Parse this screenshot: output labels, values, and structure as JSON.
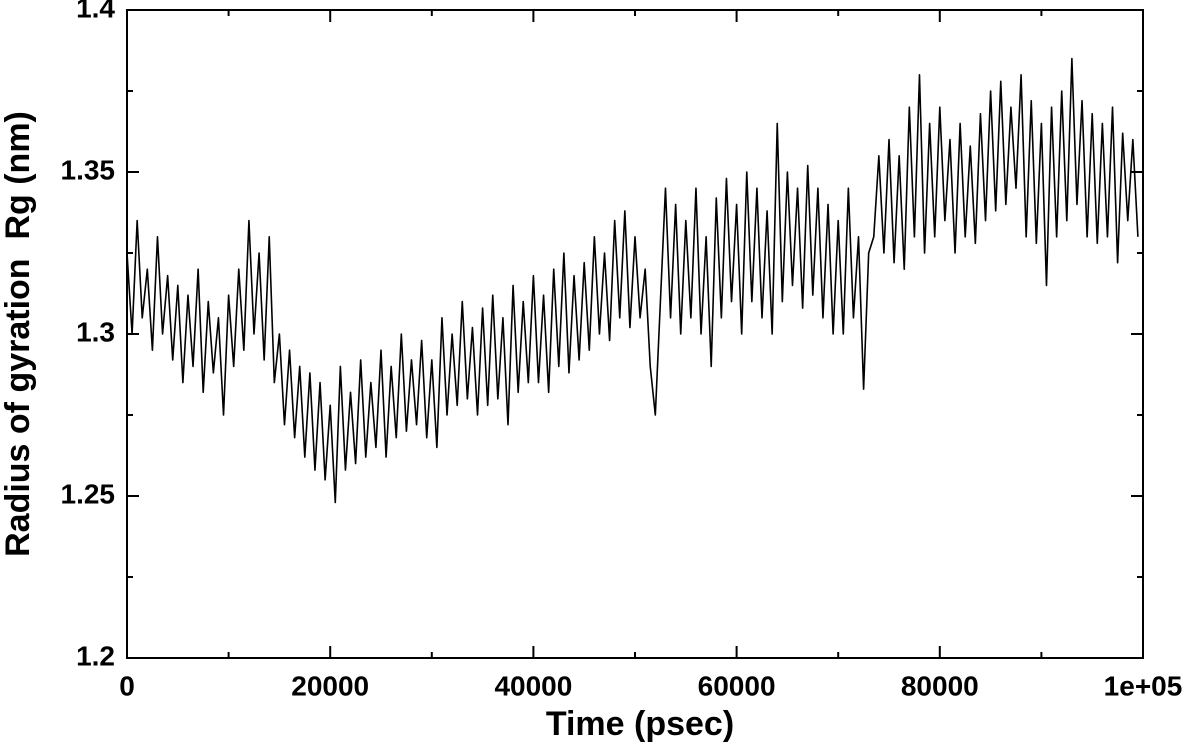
{
  "chart_data": {
    "type": "line",
    "xlabel": "Time (psec)",
    "ylabel": "Radius of gyration  Rg (nm)",
    "color": "#000000",
    "x": [
      0,
      500,
      1000,
      1500,
      2000,
      2500,
      3000,
      3500,
      4000,
      4500,
      5000,
      5500,
      6000,
      6500,
      7000,
      7500,
      8000,
      8500,
      9000,
      9500,
      10000,
      10500,
      11000,
      11500,
      12000,
      12500,
      13000,
      13500,
      14000,
      14500,
      15000,
      15500,
      16000,
      16500,
      17000,
      17500,
      18000,
      18500,
      19000,
      19500,
      20000,
      20500,
      21000,
      21500,
      22000,
      22500,
      23000,
      23500,
      24000,
      24500,
      25000,
      25500,
      26000,
      26500,
      27000,
      27500,
      28000,
      28500,
      29000,
      29500,
      30000,
      30500,
      31000,
      31500,
      32000,
      32500,
      33000,
      33500,
      34000,
      34500,
      35000,
      35500,
      36000,
      36500,
      37000,
      37500,
      38000,
      38500,
      39000,
      39500,
      40000,
      40500,
      41000,
      41500,
      42000,
      42500,
      43000,
      43500,
      44000,
      44500,
      45000,
      45500,
      46000,
      46500,
      47000,
      47500,
      48000,
      48500,
      49000,
      49500,
      50000,
      50500,
      51000,
      51500,
      52000,
      52500,
      53000,
      53500,
      54000,
      54500,
      55000,
      55500,
      56000,
      56500,
      57000,
      57500,
      58000,
      58500,
      59000,
      59500,
      60000,
      60500,
      61000,
      61500,
      62000,
      62500,
      63000,
      63500,
      64000,
      64500,
      65000,
      65500,
      66000,
      66500,
      67000,
      67500,
      68000,
      68500,
      69000,
      69500,
      70000,
      70500,
      71000,
      71500,
      72000,
      72500,
      73000,
      73500,
      74000,
      74500,
      75000,
      75500,
      76000,
      76500,
      77000,
      77500,
      78000,
      78500,
      79000,
      79500,
      80000,
      80500,
      81000,
      81500,
      82000,
      82500,
      83000,
      83500,
      84000,
      84500,
      85000,
      85500,
      86000,
      86500,
      87000,
      87500,
      88000,
      88500,
      89000,
      89500,
      90000,
      90500,
      91000,
      91500,
      92000,
      92500,
      93000,
      93500,
      94000,
      94500,
      95000,
      95500,
      96000,
      96500,
      97000,
      97500,
      98000,
      98500,
      99000,
      99500
    ],
    "values": [
      1.325,
      1.3,
      1.335,
      1.305,
      1.32,
      1.295,
      1.33,
      1.3,
      1.318,
      1.292,
      1.315,
      1.285,
      1.312,
      1.29,
      1.32,
      1.282,
      1.31,
      1.288,
      1.305,
      1.275,
      1.312,
      1.29,
      1.32,
      1.295,
      1.335,
      1.3,
      1.325,
      1.292,
      1.33,
      1.285,
      1.3,
      1.272,
      1.295,
      1.268,
      1.29,
      1.262,
      1.288,
      1.258,
      1.285,
      1.255,
      1.278,
      1.248,
      1.29,
      1.258,
      1.282,
      1.26,
      1.292,
      1.262,
      1.285,
      1.265,
      1.295,
      1.262,
      1.29,
      1.268,
      1.3,
      1.27,
      1.292,
      1.272,
      1.298,
      1.268,
      1.292,
      1.265,
      1.305,
      1.275,
      1.3,
      1.278,
      1.31,
      1.28,
      1.302,
      1.275,
      1.308,
      1.278,
      1.312,
      1.28,
      1.305,
      1.272,
      1.315,
      1.282,
      1.31,
      1.285,
      1.318,
      1.285,
      1.312,
      1.282,
      1.32,
      1.29,
      1.325,
      1.288,
      1.318,
      1.292,
      1.322,
      1.295,
      1.33,
      1.3,
      1.325,
      1.298,
      1.335,
      1.305,
      1.338,
      1.302,
      1.33,
      1.305,
      1.32,
      1.29,
      1.275,
      1.31,
      1.345,
      1.305,
      1.34,
      1.3,
      1.335,
      1.305,
      1.345,
      1.3,
      1.33,
      1.29,
      1.342,
      1.305,
      1.348,
      1.31,
      1.34,
      1.3,
      1.35,
      1.31,
      1.345,
      1.305,
      1.338,
      1.3,
      1.365,
      1.31,
      1.35,
      1.315,
      1.345,
      1.308,
      1.352,
      1.312,
      1.345,
      1.305,
      1.34,
      1.3,
      1.335,
      1.3,
      1.345,
      1.305,
      1.33,
      1.283,
      1.325,
      1.33,
      1.355,
      1.325,
      1.36,
      1.322,
      1.355,
      1.32,
      1.37,
      1.33,
      1.38,
      1.325,
      1.365,
      1.33,
      1.37,
      1.335,
      1.36,
      1.325,
      1.365,
      1.33,
      1.358,
      1.328,
      1.368,
      1.335,
      1.375,
      1.338,
      1.378,
      1.34,
      1.37,
      1.345,
      1.38,
      1.33,
      1.372,
      1.328,
      1.365,
      1.315,
      1.37,
      1.33,
      1.375,
      1.335,
      1.385,
      1.34,
      1.372,
      1.33,
      1.368,
      1.328,
      1.365,
      1.33,
      1.37,
      1.322,
      1.362,
      1.335,
      1.36,
      1.33
    ],
    "xlim": [
      0,
      100000
    ],
    "ylim": [
      1.2,
      1.4
    ],
    "xticks": [
      0,
      20000,
      40000,
      60000,
      80000,
      {
        "value": 100000,
        "label": "1e+05"
      }
    ],
    "yticks": [
      1.2,
      1.25,
      1.3,
      1.35,
      1.4
    ],
    "xminor_ticks": [
      10000,
      30000,
      50000,
      70000,
      90000
    ],
    "yminor_ticks": [
      1.225,
      1.275,
      1.325,
      1.375
    ]
  }
}
